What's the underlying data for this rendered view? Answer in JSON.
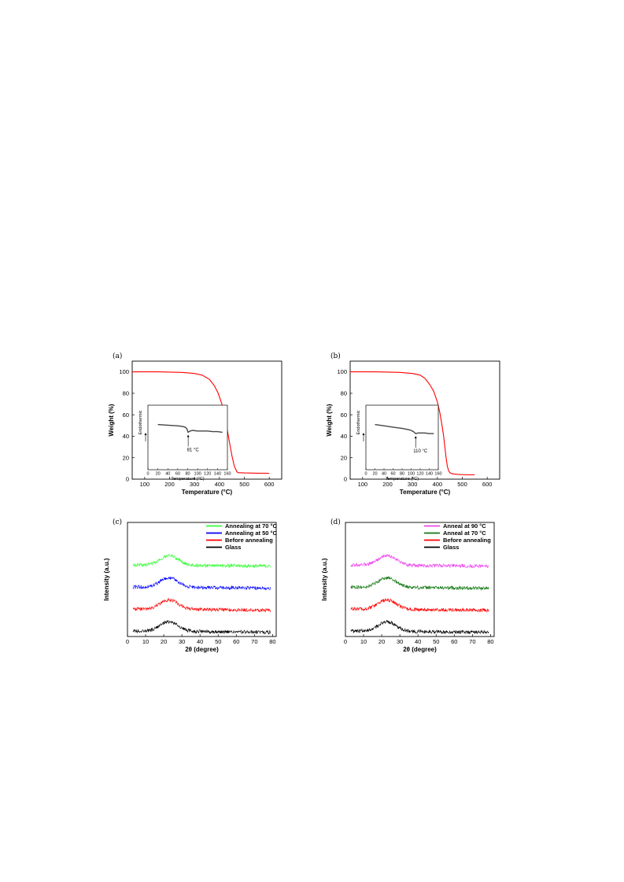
{
  "chart_data": [
    {
      "panel": "(a)",
      "type": "line",
      "xlabel": "Temperature (°C)",
      "ylabel": "Weight (%)",
      "xlim": [
        50,
        650
      ],
      "ylim": [
        0,
        110
      ],
      "xticks": [
        100,
        200,
        300,
        400,
        500,
        600
      ],
      "yticks": [
        0,
        20,
        40,
        60,
        80,
        100
      ],
      "series": [
        {
          "color": "#ff0000",
          "x": [
            50,
            150,
            250,
            300,
            330,
            360,
            380,
            395,
            410,
            420,
            430,
            440,
            450,
            460,
            470,
            475,
            480,
            500,
            550,
            600
          ],
          "y": [
            100,
            100,
            99.5,
            98.5,
            97,
            93,
            87,
            80,
            70,
            60,
            48,
            35,
            22,
            12,
            7,
            6,
            6,
            5.8,
            5.6,
            5.5
          ]
        }
      ],
      "inset": {
        "type": "line",
        "xlabel": "Temperature (°C)",
        "ylabel": "Endothermic",
        "xlim": [
          0,
          160
        ],
        "xticks": [
          0,
          20,
          40,
          60,
          80,
          100,
          120,
          140,
          160
        ],
        "ylim": [
          0,
          1
        ],
        "annotation": "81 °C",
        "annotation_x": 81,
        "series": [
          {
            "color": "#444444",
            "x": [
              20,
              40,
              60,
              70,
              75,
              78,
              81,
              85,
              90,
              100,
              110,
              120,
              130,
              140,
              150
            ],
            "y": [
              0.7,
              0.69,
              0.68,
              0.67,
              0.66,
              0.64,
              0.58,
              0.6,
              0.61,
              0.6,
              0.6,
              0.6,
              0.59,
              0.59,
              0.58
            ]
          }
        ]
      }
    },
    {
      "panel": "(b)",
      "type": "line",
      "xlabel": "Temperature (°C)",
      "ylabel": "Weight (%)",
      "xlim": [
        50,
        650
      ],
      "ylim": [
        0,
        110
      ],
      "xticks": [
        100,
        200,
        300,
        400,
        500,
        600
      ],
      "yticks": [
        0,
        20,
        40,
        60,
        80,
        100
      ],
      "series": [
        {
          "color": "#ff0000",
          "x": [
            50,
            150,
            250,
            300,
            330,
            350,
            370,
            385,
            400,
            410,
            420,
            425,
            430,
            435,
            440,
            445,
            450,
            460,
            480,
            520,
            550
          ],
          "y": [
            100,
            100,
            99.5,
            98.5,
            97,
            94,
            88,
            82,
            72,
            62,
            48,
            40,
            30,
            20,
            12,
            8,
            6,
            5,
            4.5,
            4,
            4
          ]
        }
      ],
      "inset": {
        "type": "line",
        "xlabel": "Temperature (°C)",
        "ylabel": "Endothermic",
        "xlim": [
          0,
          160
        ],
        "xticks": [
          0,
          20,
          40,
          60,
          80,
          100,
          120,
          140,
          160
        ],
        "ylim": [
          0,
          1
        ],
        "annotation": "110 °C",
        "annotation_x": 110,
        "series": [
          {
            "color": "#444444",
            "x": [
              20,
              40,
              60,
              80,
              95,
              100,
              105,
              110,
              115,
              120,
              130,
              140,
              150
            ],
            "y": [
              0.7,
              0.68,
              0.66,
              0.64,
              0.62,
              0.61,
              0.59,
              0.56,
              0.57,
              0.57,
              0.57,
              0.56,
              0.56
            ]
          }
        ]
      }
    },
    {
      "panel": "(c)",
      "type": "line",
      "xlabel": "2θ (degree)",
      "ylabel": "Intensity (a.u.)",
      "xlim": [
        0,
        82
      ],
      "xticks": [
        0,
        10,
        20,
        30,
        40,
        50,
        60,
        70,
        80
      ],
      "legend_position": "top-right",
      "series": [
        {
          "name": "Annealing at 70 °C",
          "color": "#33ff33",
          "offset": 3,
          "peak": 23
        },
        {
          "name": "Annealing at 50 °C",
          "color": "#0000ff",
          "offset": 2,
          "peak": 23
        },
        {
          "name": "Before annealing",
          "color": "#ff0000",
          "offset": 1,
          "peak": 23
        },
        {
          "name": "Glass",
          "color": "#000000",
          "offset": 0,
          "peak": 23
        }
      ]
    },
    {
      "panel": "(d)",
      "type": "line",
      "xlabel": "2θ (degree)",
      "ylabel": "Intensity (a.u.)",
      "xlim": [
        0,
        82
      ],
      "xticks": [
        0,
        10,
        20,
        30,
        40,
        50,
        60,
        70,
        80
      ],
      "legend_position": "top-right",
      "series": [
        {
          "name": "Anneal at 90 °C",
          "color": "#ee44ee",
          "offset": 3,
          "peak": 23
        },
        {
          "name": "Anneal at 70 °C",
          "color": "#117711",
          "offset": 2,
          "peak": 23
        },
        {
          "name": "Before annealing",
          "color": "#ff0000",
          "offset": 1,
          "peak": 23
        },
        {
          "name": "Glass",
          "color": "#000000",
          "offset": 0,
          "peak": 23
        }
      ]
    }
  ]
}
